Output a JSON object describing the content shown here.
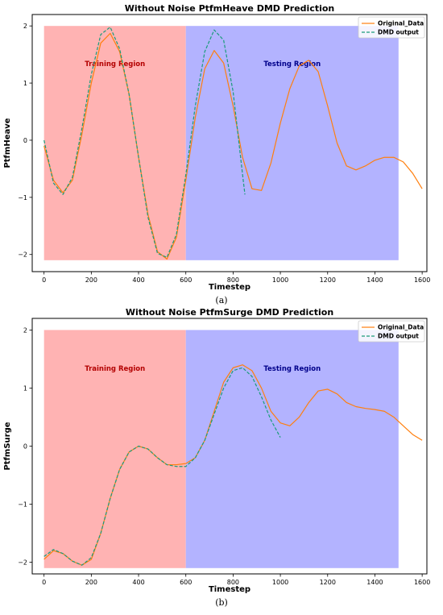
{
  "chart_data": [
    {
      "type": "line",
      "title": "Without Noise PtfmHeave DMD Prediction",
      "xlabel": "Timestep",
      "ylabel": "PtfmHeave",
      "xlim": [
        -50,
        1620
      ],
      "ylim": [
        -2.3,
        2.2
      ],
      "xticks": [
        0,
        200,
        400,
        600,
        800,
        1000,
        1200,
        1400,
        1600
      ],
      "yticks": [
        -2,
        -1,
        0,
        1,
        2
      ],
      "grid": false,
      "legend": "top-right",
      "caption": "(a)",
      "regions": [
        {
          "label": "Training Region",
          "x0": 0,
          "x1": 600,
          "y0": -2.1,
          "y1": 2.0,
          "fill": "#ffb3b3",
          "text_color": "#b30000",
          "label_x": 300,
          "label_y": 1.3
        },
        {
          "label": "Testing Region",
          "x0": 600,
          "x1": 1500,
          "y0": -2.1,
          "y1": 2.0,
          "fill": "#b3b3ff",
          "text_color": "#00008b",
          "label_x": 1050,
          "label_y": 1.3
        }
      ],
      "series": [
        {
          "name": "Original_Data",
          "color": "#ff7f0e",
          "dash": "none",
          "x": [
            0,
            40,
            80,
            120,
            160,
            200,
            240,
            280,
            320,
            360,
            400,
            440,
            480,
            520,
            560,
            600,
            640,
            680,
            720,
            760,
            800,
            840,
            880,
            920,
            960,
            1000,
            1040,
            1080,
            1120,
            1160,
            1200,
            1240,
            1280,
            1320,
            1360,
            1400,
            1440,
            1480,
            1520,
            1560,
            1600
          ],
          "y": [
            -0.1,
            -0.7,
            -0.92,
            -0.7,
            0.1,
            1.0,
            1.7,
            1.87,
            1.55,
            0.8,
            -0.3,
            -1.3,
            -1.95,
            -2.08,
            -1.7,
            -0.7,
            0.4,
            1.25,
            1.57,
            1.35,
            0.6,
            -0.3,
            -0.85,
            -0.88,
            -0.4,
            0.3,
            0.9,
            1.3,
            1.4,
            1.2,
            0.6,
            -0.05,
            -0.45,
            -0.52,
            -0.45,
            -0.35,
            -0.3,
            -0.3,
            -0.38,
            -0.58,
            -0.85
          ]
        },
        {
          "name": "DMD output",
          "color": "#1a9c7a",
          "dash": "4,2",
          "x": [
            0,
            40,
            80,
            120,
            160,
            200,
            240,
            280,
            320,
            360,
            400,
            440,
            480,
            520,
            560,
            600,
            640,
            680,
            720,
            760,
            800,
            840,
            850
          ],
          "y": [
            0.0,
            -0.75,
            -0.95,
            -0.65,
            0.2,
            1.15,
            1.85,
            1.98,
            1.6,
            0.8,
            -0.3,
            -1.35,
            -1.98,
            -2.05,
            -1.65,
            -0.6,
            0.6,
            1.55,
            1.93,
            1.75,
            0.85,
            -0.6,
            -0.95
          ]
        }
      ]
    },
    {
      "type": "line",
      "title": "Without Noise PtfmSurge DMD Prediction",
      "xlabel": "Timestep",
      "ylabel": "PtfmSurge",
      "xlim": [
        -50,
        1620
      ],
      "ylim": [
        -2.2,
        2.2
      ],
      "xticks": [
        0,
        200,
        400,
        600,
        800,
        1000,
        1200,
        1400,
        1600
      ],
      "yticks": [
        -2,
        -1,
        0,
        1,
        2
      ],
      "grid": false,
      "legend": "top-right",
      "caption": "(b)",
      "regions": [
        {
          "label": "Training Region",
          "x0": 0,
          "x1": 600,
          "y0": -2.1,
          "y1": 2.0,
          "fill": "#ffb3b3",
          "text_color": "#b30000",
          "label_x": 300,
          "label_y": 1.3
        },
        {
          "label": "Testing Region",
          "x0": 600,
          "x1": 1500,
          "y0": -2.1,
          "y1": 2.0,
          "fill": "#b3b3ff",
          "text_color": "#00008b",
          "label_x": 1050,
          "label_y": 1.3
        }
      ],
      "series": [
        {
          "name": "Original_Data",
          "color": "#ff7f0e",
          "dash": "none",
          "x": [
            0,
            40,
            80,
            120,
            160,
            200,
            240,
            280,
            320,
            360,
            400,
            440,
            480,
            520,
            560,
            600,
            640,
            680,
            720,
            760,
            800,
            840,
            880,
            920,
            960,
            1000,
            1040,
            1080,
            1120,
            1160,
            1200,
            1240,
            1280,
            1320,
            1360,
            1400,
            1440,
            1480,
            1520,
            1560,
            1600
          ],
          "y": [
            -1.95,
            -1.8,
            -1.85,
            -1.98,
            -2.05,
            -1.95,
            -1.5,
            -0.9,
            -0.4,
            -0.1,
            0.0,
            -0.05,
            -0.2,
            -0.32,
            -0.32,
            -0.3,
            -0.2,
            0.1,
            0.6,
            1.1,
            1.35,
            1.4,
            1.3,
            1.0,
            0.6,
            0.4,
            0.35,
            0.5,
            0.75,
            0.95,
            0.98,
            0.9,
            0.75,
            0.68,
            0.65,
            0.63,
            0.6,
            0.5,
            0.35,
            0.2,
            0.1
          ]
        },
        {
          "name": "DMD output",
          "color": "#1a9c7a",
          "dash": "4,2",
          "x": [
            0,
            40,
            80,
            120,
            160,
            200,
            240,
            280,
            320,
            360,
            400,
            440,
            480,
            520,
            560,
            600,
            640,
            680,
            720,
            760,
            800,
            840,
            880,
            920,
            960,
            1000
          ],
          "y": [
            -1.9,
            -1.78,
            -1.85,
            -1.98,
            -2.05,
            -1.92,
            -1.5,
            -0.9,
            -0.4,
            -0.1,
            0.0,
            -0.05,
            -0.2,
            -0.32,
            -0.35,
            -0.35,
            -0.2,
            0.1,
            0.55,
            1.0,
            1.3,
            1.35,
            1.2,
            0.85,
            0.45,
            0.15
          ]
        }
      ]
    }
  ]
}
